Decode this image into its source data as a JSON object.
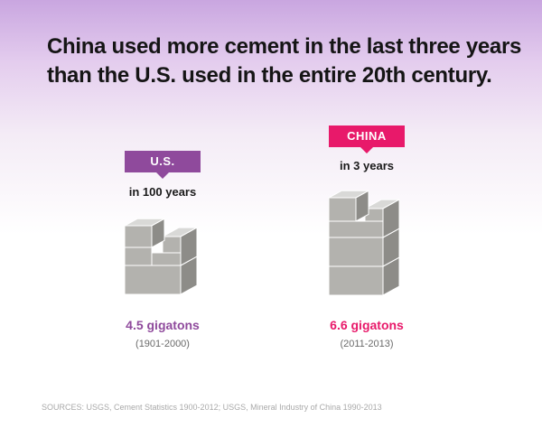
{
  "header": {
    "title_line1": "China used more cement in the last three years",
    "title_line2": "than the U.S. used in the entire 20th century."
  },
  "colors": {
    "us": "#8f4a9c",
    "china": "#e8196a",
    "block_top": "#d9d9d7",
    "block_front": "#b3b2ae",
    "block_side": "#8d8c88"
  },
  "chart_data": {
    "type": "bar",
    "title": "China used more cement in the last three years than the U.S. used in the entire 20th century.",
    "categories": [
      "U.S.",
      "CHINA"
    ],
    "values": [
      4.5,
      6.6
    ],
    "unit": "gigatons",
    "periods": [
      "in 100 years",
      "in 3 years"
    ],
    "ranges": [
      "(1901-2000)",
      "(2011-2013)"
    ],
    "value_labels": [
      "4.5 gigatons",
      "6.6 gigatons"
    ]
  },
  "footer": {
    "sources": "SOURCES: USGS, Cement Statistics 1900-2012; USGS, Mineral Industry of China 1990-2013"
  }
}
